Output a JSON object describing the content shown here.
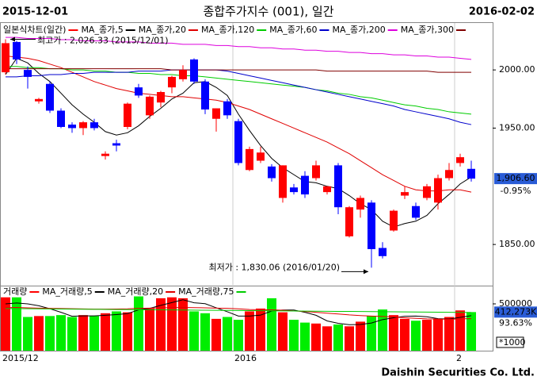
{
  "header": {
    "start": "2015-12-01",
    "title": "종합주가지수 (001), 일간",
    "end": "2016-02-02"
  },
  "footer": "Daishin Securities Co. Ltd.",
  "chart_data": [
    {
      "type": "candlestick",
      "legend": "일본식차트(일간)",
      "up_color": "#ff0000",
      "down_color": "#0000ff",
      "categories": [
        "2015/12",
        null,
        null,
        null,
        null,
        null,
        null,
        null,
        null,
        null,
        null,
        null,
        null,
        null,
        null,
        null,
        null,
        null,
        null,
        null,
        null,
        "2016",
        null,
        null,
        null,
        null,
        null,
        null,
        null,
        null,
        null,
        null,
        null,
        null,
        null,
        null,
        null,
        null,
        null,
        null,
        null,
        "2",
        null
      ],
      "open": [
        1998,
        2024,
        2000,
        1973,
        1988,
        1965,
        1953,
        1950,
        1955,
        1926,
        1937,
        1951,
        1985,
        1961,
        1972,
        1985,
        1992,
        2009,
        1990,
        1958,
        1973,
        1956,
        1914,
        1922,
        1917,
        1890,
        1899,
        1909,
        1907,
        1895,
        1918,
        1857,
        1880,
        1886,
        1847,
        1862,
        1892,
        1883,
        1890,
        1886,
        1907,
        1920,
        1915
      ],
      "high": [
        2026.33,
        2025,
        2003,
        1976,
        1990,
        1967,
        1955,
        1956,
        1958,
        1930,
        1940,
        1972,
        1988,
        1978,
        1982,
        1995,
        2004,
        2010,
        1992,
        1967,
        1975,
        1958,
        1934,
        1934,
        1919,
        1918,
        1902,
        1913,
        1922,
        1900,
        1920,
        1883,
        1892,
        1888,
        1852,
        1880,
        1900,
        1886,
        1902,
        1910,
        1920,
        1928,
        1922
      ],
      "low": [
        1996,
        2005,
        1984,
        1971,
        1963,
        1950,
        1946,
        1944,
        1948,
        1923,
        1930,
        1949,
        1976,
        1958,
        1968,
        1980,
        1990,
        1988,
        1962,
        1947,
        1958,
        1918,
        1913,
        1920,
        1904,
        1886,
        1893,
        1890,
        1905,
        1893,
        1876,
        1856,
        1873,
        1830.06,
        1838,
        1861,
        1889,
        1871,
        1888,
        1880,
        1905,
        1917,
        1904
      ],
      "close": [
        2023,
        2009,
        1994,
        1975,
        1965,
        1951,
        1950,
        1955,
        1950,
        1928,
        1935,
        1971,
        1978,
        1977,
        1981,
        1994,
        2000,
        1990,
        1966,
        1967,
        1961,
        1920,
        1932,
        1929,
        1907,
        1918,
        1895,
        1893,
        1918,
        1900,
        1882,
        1882,
        1890,
        1846,
        1840,
        1879,
        1895,
        1873,
        1900,
        1907,
        1914,
        1925,
        1906.6
      ],
      "series": [
        {
          "name": "MA_종가,5",
          "color": "#000000",
          "values": [
            1996,
            2010,
            2006,
            1997,
            1990,
            1980,
            1970,
            1962,
            1955,
            1947,
            1944,
            1946,
            1952,
            1960,
            1967,
            1975,
            1980,
            1989,
            1990,
            1985,
            1978,
            1962,
            1948,
            1935,
            1924,
            1916,
            1910,
            1904,
            1903,
            1900,
            1898,
            1892,
            1885,
            1880,
            1870,
            1865,
            1868,
            1870,
            1875,
            1885,
            1893,
            1902,
            1908
          ]
        },
        {
          "name": "MA_종가,20",
          "color": "#e00000",
          "values": [
            2012,
            2011,
            2010,
            2008,
            2005,
            2002,
            1998,
            1994,
            1990,
            1987,
            1984,
            1982,
            1980,
            1979,
            1978,
            1977,
            1977,
            1976,
            1975,
            1974,
            1972,
            1969,
            1966,
            1962,
            1958,
            1954,
            1950,
            1946,
            1942,
            1938,
            1933,
            1928,
            1922,
            1916,
            1910,
            1905,
            1900,
            1897,
            1896,
            1896,
            1897,
            1897,
            1895
          ]
        },
        {
          "name": "MA_종가,120",
          "color": "#00cc00",
          "values": [
            2003,
            2003,
            2002,
            2002,
            2001,
            2001,
            2000,
            2000,
            1999,
            1999,
            1998,
            1998,
            1997,
            1997,
            1996,
            1996,
            1995,
            1995,
            1994,
            1993,
            1992,
            1991,
            1990,
            1989,
            1988,
            1987,
            1986,
            1985,
            1983,
            1982,
            1980,
            1979,
            1977,
            1976,
            1974,
            1972,
            1970,
            1969,
            1967,
            1966,
            1964,
            1963,
            1962
          ]
        },
        {
          "name": "MA_종가,60",
          "color": "#0000cc",
          "values": [
            1994,
            1994,
            1995,
            1995,
            1996,
            1996,
            1997,
            1997,
            1998,
            1998,
            1998,
            1998,
            1999,
            1999,
            1999,
            2000,
            2000,
            2000,
            2000,
            2000,
            1999,
            1997,
            1995,
            1993,
            1991,
            1989,
            1987,
            1985,
            1983,
            1981,
            1979,
            1977,
            1975,
            1973,
            1971,
            1969,
            1966,
            1964,
            1962,
            1960,
            1958,
            1955,
            1953
          ]
        },
        {
          "name": "MA_종가,200",
          "color": "#dd00dd",
          "values": [
            2028,
            2028,
            2027,
            2027,
            2027,
            2026,
            2026,
            2025,
            2025,
            2025,
            2024,
            2024,
            2024,
            2023,
            2023,
            2023,
            2022,
            2022,
            2022,
            2021,
            2021,
            2020,
            2020,
            2019,
            2019,
            2018,
            2018,
            2017,
            2017,
            2016,
            2016,
            2015,
            2015,
            2014,
            2014,
            2013,
            2013,
            2012,
            2012,
            2011,
            2011,
            2010,
            2009
          ]
        },
        {
          "name": "MA_종가,300",
          "color": "#800000",
          "values": [
            2001,
            2001,
            2001,
            2001,
            2001,
            2001,
            2001,
            2001,
            2001,
            2001,
            2001,
            2001,
            2001,
            2001,
            2001,
            2000,
            2000,
            2000,
            2000,
            2000,
            2000,
            2000,
            2000,
            2000,
            2000,
            2000,
            2000,
            2000,
            2000,
            1999,
            1999,
            1999,
            1999,
            1999,
            1999,
            1999,
            1999,
            1999,
            1999,
            1998,
            1998,
            1998,
            1998
          ]
        }
      ],
      "ylim": [
        1816,
        2041
      ],
      "yticks": [
        {
          "value": 2000,
          "label": "2000.00"
        },
        {
          "value": 1950,
          "label": "1950.00"
        },
        {
          "value": 1850,
          "label": "1850.00"
        }
      ],
      "high_annotation": "최고가 : 2,026.33 (2015/12/01)",
      "low_annotation": "최저가 : 1,830.06 (2016/01/20)",
      "last_label": "1,906.60",
      "change_label": "-0.95%"
    },
    {
      "type": "bar",
      "legend": "거래량",
      "up_color": "#ff0000",
      "down_color": "#00ee00",
      "values": [
        570000,
        570000,
        360000,
        370000,
        370000,
        380000,
        360000,
        380000,
        370000,
        400000,
        420000,
        410000,
        580000,
        450000,
        560000,
        570000,
        560000,
        420000,
        400000,
        340000,
        360000,
        330000,
        420000,
        450000,
        560000,
        410000,
        330000,
        300000,
        290000,
        260000,
        280000,
        260000,
        310000,
        370000,
        440000,
        380000,
        340000,
        320000,
        330000,
        340000,
        360000,
        430000,
        412273
      ],
      "series": [
        {
          "name": "MA_거래량,5",
          "color": "#000000",
          "values": [
            500000,
            510000,
            500000,
            480000,
            448000,
            410000,
            368000,
            372000,
            372000,
            378000,
            386000,
            396000,
            436000,
            452000,
            484000,
            514000,
            544000,
            512000,
            502000,
            458000,
            416000,
            370000,
            370000,
            380000,
            424000,
            434000,
            434000,
            410000,
            378000,
            318000,
            292000,
            278000,
            280000,
            296000,
            332000,
            352000,
            368000,
            370000,
            362000,
            342000,
            338000,
            356000,
            374000
          ]
        },
        {
          "name": "MA_거래량,20",
          "color": "#e00000",
          "values": [
            460000,
            462000,
            458000,
            455000,
            452000,
            450000,
            448000,
            446000,
            444000,
            444000,
            445000,
            447000,
            452000,
            455000,
            458000,
            460000,
            462000,
            460000,
            458000,
            455000,
            452000,
            447000,
            440000,
            436000,
            436000,
            432000,
            425000,
            418000,
            410000,
            400000,
            392000,
            382000,
            375000,
            370000,
            365000,
            360000,
            352000,
            345000,
            340000,
            338000,
            335000,
            340000,
            342000
          ]
        },
        {
          "name": "MA_거래량,75",
          "color": "#00cc00",
          "values": [
            450000,
            449000,
            448000,
            447000,
            446000,
            445000,
            444000,
            443000,
            442000,
            441000,
            440000,
            439000,
            438000,
            437000,
            436000,
            435000,
            434000,
            433000,
            432000,
            431000,
            430000,
            429000,
            428000,
            427000,
            426000,
            425000,
            424000,
            423000,
            422000,
            421000,
            420000,
            419000,
            418000,
            417000,
            416000,
            415000,
            414000,
            413000,
            412000,
            411000,
            410000,
            409000,
            408000
          ]
        }
      ],
      "ylim": [
        0,
        678000
      ],
      "yticks": [
        500000
      ],
      "last_label": "412,273K",
      "ratio_label": "93.63%",
      "unit_label": "*1000"
    }
  ]
}
